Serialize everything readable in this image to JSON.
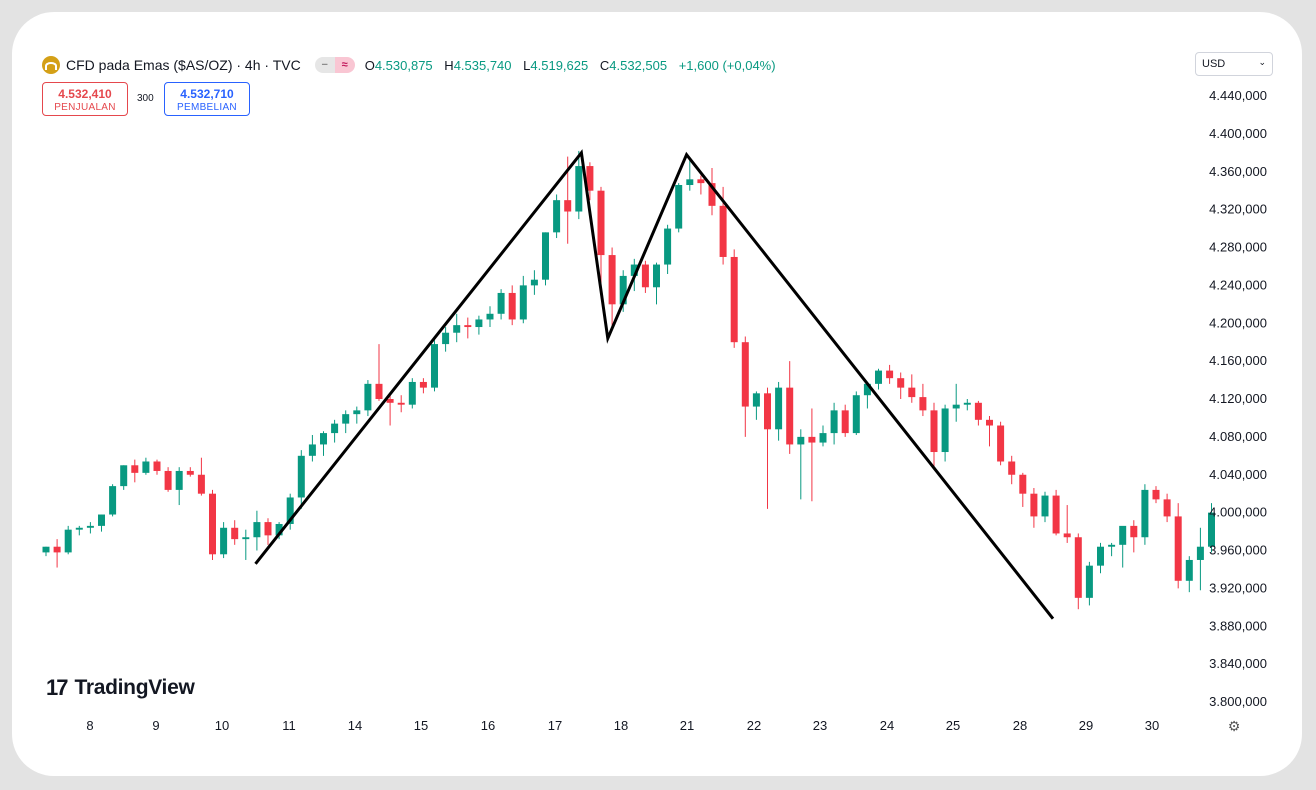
{
  "header": {
    "title": "CFD pada Emas ($AS/OZ) · 4h · TVC",
    "pill_left": "−",
    "pill_right": "≈",
    "open_label": "O",
    "open": "4.530,875",
    "high_label": "H",
    "high": "4.535,740",
    "low_label": "L",
    "low": "4.519,625",
    "close_label": "C",
    "close": "4.532,505",
    "change": "+1,600 (+0,04%)"
  },
  "sell": {
    "value": "4.532,410",
    "label": "PENJUALAN"
  },
  "spread": "300",
  "buy": {
    "value": "4.532,710",
    "label": "PEMBELIAN"
  },
  "currency": {
    "value": "USD",
    "arrow": "⌄"
  },
  "logo": {
    "mark": "17",
    "text": "TradingView"
  },
  "colors": {
    "up": "#089981",
    "down": "#f23645",
    "pattern_line": "#000000"
  },
  "chart_data": {
    "type": "candlestick",
    "y_axis_labels": [
      "4.440,000",
      "4.400,000",
      "4.360,000",
      "4.320,000",
      "4.280,000",
      "4.240,000",
      "4.200,000",
      "4.160,000",
      "4.120,000",
      "4.080,000",
      "4.040,000",
      "4.000,000",
      "3.960,000",
      "3.920,000",
      "3.880,000",
      "3.840,000",
      "3.800,000"
    ],
    "x_axis_labels": [
      "8",
      "9",
      "10",
      "11",
      "14",
      "15",
      "16",
      "17",
      "18",
      "21",
      "22",
      "23",
      "24",
      "25",
      "28",
      "29",
      "30"
    ],
    "ylim": [
      3780,
      4452
    ],
    "grid": false,
    "candles": [
      [
        3958,
        3964,
        3954,
        3964
      ],
      [
        3964,
        3972,
        3942,
        3958
      ],
      [
        3958,
        3986,
        3956,
        3982
      ],
      [
        3982,
        3986,
        3976,
        3984
      ],
      [
        3984,
        3990,
        3978,
        3986
      ],
      [
        3986,
        3998,
        3980,
        3998
      ],
      [
        3998,
        4030,
        3996,
        4028
      ],
      [
        4028,
        4050,
        4024,
        4050
      ],
      [
        4050,
        4056,
        4032,
        4042
      ],
      [
        4042,
        4058,
        4040,
        4054
      ],
      [
        4054,
        4056,
        4040,
        4044
      ],
      [
        4044,
        4048,
        4022,
        4024
      ],
      [
        4024,
        4048,
        4008,
        4044
      ],
      [
        4044,
        4048,
        4038,
        4040
      ],
      [
        4040,
        4058,
        4018,
        4020
      ],
      [
        4020,
        4024,
        3950,
        3956
      ],
      [
        3956,
        3990,
        3952,
        3984
      ],
      [
        3984,
        3992,
        3966,
        3972
      ],
      [
        3972,
        3982,
        3950,
        3974
      ],
      [
        3974,
        4002,
        3960,
        3990
      ],
      [
        3990,
        3994,
        3966,
        3976
      ],
      [
        3976,
        3990,
        3972,
        3988
      ],
      [
        3988,
        4020,
        3982,
        4016
      ],
      [
        4016,
        4066,
        4004,
        4060
      ],
      [
        4060,
        4082,
        4054,
        4072
      ],
      [
        4072,
        4086,
        4060,
        4084
      ],
      [
        4084,
        4098,
        4074,
        4094
      ],
      [
        4094,
        4108,
        4084,
        4104
      ],
      [
        4104,
        4112,
        4094,
        4108
      ],
      [
        4108,
        4140,
        4102,
        4136
      ],
      [
        4136,
        4178,
        4118,
        4120
      ],
      [
        4120,
        4124,
        4092,
        4116
      ],
      [
        4116,
        4124,
        4106,
        4114
      ],
      [
        4114,
        4142,
        4110,
        4138
      ],
      [
        4138,
        4142,
        4126,
        4132
      ],
      [
        4132,
        4182,
        4128,
        4178
      ],
      [
        4178,
        4196,
        4170,
        4190
      ],
      [
        4190,
        4210,
        4180,
        4198
      ],
      [
        4198,
        4206,
        4184,
        4196
      ],
      [
        4196,
        4208,
        4188,
        4204
      ],
      [
        4204,
        4218,
        4196,
        4210
      ],
      [
        4210,
        4236,
        4204,
        4232
      ],
      [
        4232,
        4240,
        4198,
        4204
      ],
      [
        4204,
        4250,
        4200,
        4240
      ],
      [
        4240,
        4256,
        4230,
        4246
      ],
      [
        4246,
        4296,
        4240,
        4296
      ],
      [
        4296,
        4336,
        4290,
        4330
      ],
      [
        4330,
        4376,
        4284,
        4318
      ],
      [
        4318,
        4382,
        4310,
        4366
      ],
      [
        4366,
        4370,
        4330,
        4340
      ],
      [
        4340,
        4344,
        4236,
        4272
      ],
      [
        4272,
        4280,
        4196,
        4220
      ],
      [
        4220,
        4256,
        4212,
        4250
      ],
      [
        4250,
        4268,
        4234,
        4262
      ],
      [
        4262,
        4266,
        4232,
        4238
      ],
      [
        4238,
        4264,
        4220,
        4262
      ],
      [
        4262,
        4304,
        4252,
        4300
      ],
      [
        4300,
        4348,
        4296,
        4346
      ],
      [
        4346,
        4374,
        4340,
        4352
      ],
      [
        4352,
        4356,
        4336,
        4348
      ],
      [
        4348,
        4364,
        4314,
        4324
      ],
      [
        4324,
        4344,
        4262,
        4270
      ],
      [
        4270,
        4278,
        4174,
        4180
      ],
      [
        4180,
        4186,
        4080,
        4112
      ],
      [
        4112,
        4128,
        4098,
        4126
      ],
      [
        4126,
        4132,
        4004,
        4088
      ],
      [
        4088,
        4138,
        4076,
        4132
      ],
      [
        4132,
        4160,
        4062,
        4072
      ],
      [
        4072,
        4088,
        4014,
        4080
      ],
      [
        4080,
        4110,
        4012,
        4074
      ],
      [
        4074,
        4092,
        4070,
        4084
      ],
      [
        4084,
        4116,
        4072,
        4108
      ],
      [
        4108,
        4114,
        4080,
        4084
      ],
      [
        4084,
        4128,
        4082,
        4124
      ],
      [
        4124,
        4138,
        4110,
        4136
      ],
      [
        4136,
        4152,
        4130,
        4150
      ],
      [
        4150,
        4156,
        4136,
        4142
      ],
      [
        4142,
        4148,
        4120,
        4132
      ],
      [
        4132,
        4146,
        4116,
        4122
      ],
      [
        4122,
        4136,
        4102,
        4108
      ],
      [
        4108,
        4116,
        4048,
        4064
      ],
      [
        4064,
        4114,
        4054,
        4110
      ],
      [
        4110,
        4136,
        4096,
        4114
      ],
      [
        4114,
        4120,
        4108,
        4116
      ],
      [
        4116,
        4118,
        4092,
        4098
      ],
      [
        4098,
        4102,
        4070,
        4092
      ],
      [
        4092,
        4096,
        4050,
        4054
      ],
      [
        4054,
        4060,
        4030,
        4040
      ],
      [
        4040,
        4042,
        4006,
        4020
      ],
      [
        4020,
        4026,
        3984,
        3996
      ],
      [
        3996,
        4022,
        3990,
        4018
      ],
      [
        4018,
        4024,
        3976,
        3978
      ],
      [
        3978,
        4008,
        3968,
        3974
      ],
      [
        3974,
        3978,
        3898,
        3910
      ],
      [
        3910,
        3948,
        3902,
        3944
      ],
      [
        3944,
        3968,
        3936,
        3964
      ],
      [
        3964,
        3968,
        3954,
        3966
      ],
      [
        3966,
        3982,
        3942,
        3986
      ],
      [
        3986,
        3992,
        3958,
        3974
      ],
      [
        3974,
        4030,
        3966,
        4024
      ],
      [
        4024,
        4028,
        4010,
        4014
      ],
      [
        4014,
        4020,
        3990,
        3996
      ],
      [
        3996,
        4010,
        3920,
        3928
      ],
      [
        3928,
        3954,
        3916,
        3950
      ],
      [
        3950,
        3984,
        3918,
        3964
      ],
      [
        3964,
        4010,
        3958,
        4000
      ]
    ],
    "pattern_line": [
      [
        10.5,
        3946
      ],
      [
        17.4,
        4380
      ],
      [
        17.8,
        4184
      ],
      [
        20.98,
        4378
      ],
      [
        28.5,
        3888
      ]
    ]
  }
}
